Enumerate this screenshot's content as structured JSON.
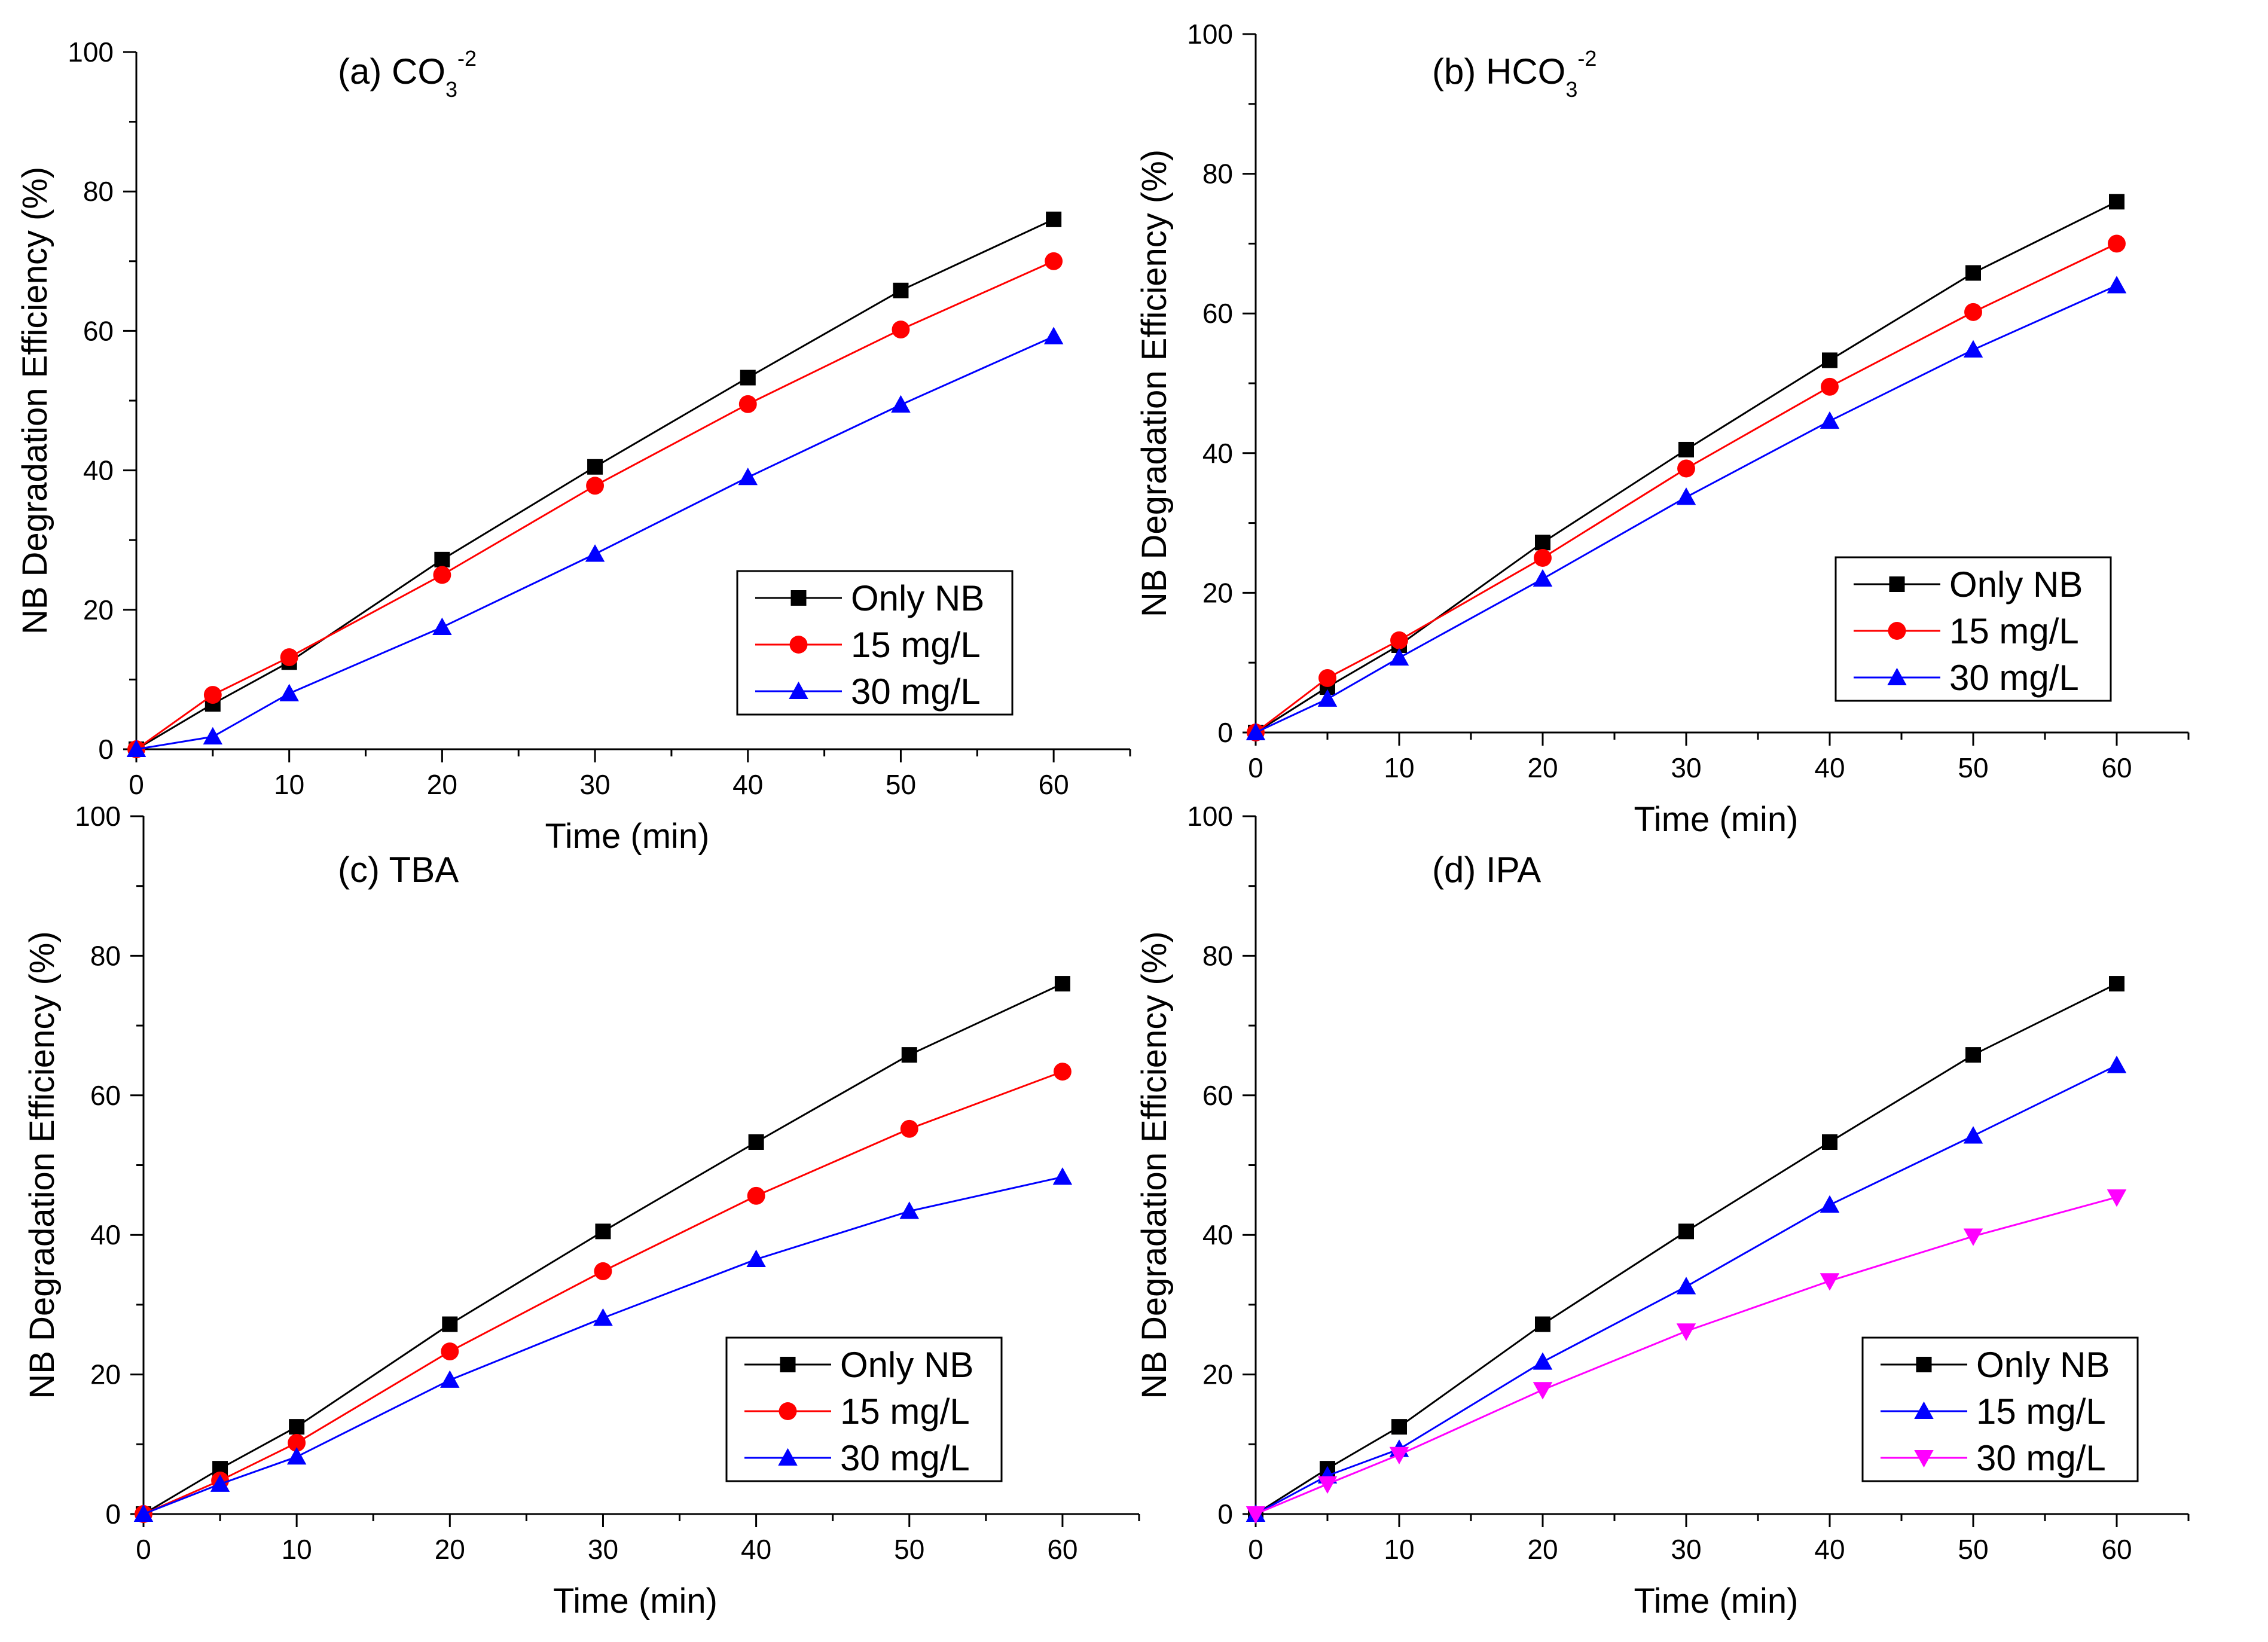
{
  "chart_data": [
    {
      "type": "line",
      "title_prefix": "(a)",
      "title_main": "CO",
      "title_sub": "3",
      "title_sup": "-2",
      "xlabel": "Time (min)",
      "ylabel": "NB Degradation Efficiency (%)",
      "xlim": [
        0,
        65
      ],
      "ylim": [
        0,
        100
      ],
      "xticks": [
        "0",
        "10",
        "20",
        "30",
        "40",
        "50",
        "60"
      ],
      "yticks": [
        "0",
        "20",
        "40",
        "60",
        "80",
        "100"
      ],
      "x": [
        0,
        5,
        10,
        20,
        30,
        40,
        50,
        60
      ],
      "legend_position": "bottom-right",
      "series": [
        {
          "name": "Only NB",
          "color": "#000000",
          "marker": "square",
          "values": [
            0,
            6.5,
            12.5,
            27.2,
            40.5,
            53.3,
            65.8,
            76.0
          ]
        },
        {
          "name": "15 mg/L",
          "color": "#ff0000",
          "marker": "circle",
          "values": [
            0,
            7.8,
            13.2,
            25.0,
            37.8,
            49.5,
            60.2,
            70.0
          ]
        },
        {
          "name": "30 mg/L",
          "color": "#0000ff",
          "marker": "triangle-up",
          "values": [
            0,
            1.8,
            8.0,
            17.5,
            28.0,
            39.0,
            49.4,
            59.2
          ]
        }
      ]
    },
    {
      "type": "line",
      "title_prefix": "(b)",
      "title_main": "HCO",
      "title_sub": "3",
      "title_sup": "-2",
      "xlabel": "Time (min)",
      "ylabel": "NB Degradation Efficiency (%)",
      "xlim": [
        0,
        65
      ],
      "ylim": [
        0,
        100
      ],
      "xticks": [
        "0",
        "10",
        "20",
        "30",
        "40",
        "50",
        "60"
      ],
      "yticks": [
        "0",
        "20",
        "40",
        "60",
        "80",
        "100"
      ],
      "x": [
        0,
        5,
        10,
        20,
        30,
        40,
        50,
        60
      ],
      "legend_position": "bottom-right",
      "series": [
        {
          "name": "Only NB",
          "color": "#000000",
          "marker": "square",
          "values": [
            0,
            6.5,
            12.5,
            27.2,
            40.5,
            53.3,
            65.8,
            76.0
          ]
        },
        {
          "name": "15 mg/L",
          "color": "#ff0000",
          "marker": "circle",
          "values": [
            0,
            7.8,
            13.2,
            25.0,
            37.8,
            49.5,
            60.2,
            70.0
          ]
        },
        {
          "name": "30 mg/L",
          "color": "#0000ff",
          "marker": "triangle-up",
          "values": [
            0,
            4.8,
            10.7,
            22.0,
            33.7,
            44.6,
            54.8,
            64.0
          ]
        }
      ]
    },
    {
      "type": "line",
      "title_prefix": "(c)",
      "title_main": "TBA",
      "title_sub": "",
      "title_sup": "",
      "xlabel": "Time (min)",
      "ylabel": "NB Degradation Efficiency (%)",
      "xlim": [
        0,
        65
      ],
      "ylim": [
        0,
        100
      ],
      "xticks": [
        "0",
        "10",
        "20",
        "30",
        "40",
        "50",
        "60"
      ],
      "yticks": [
        "0",
        "20",
        "40",
        "60",
        "80",
        "100"
      ],
      "x": [
        0,
        5,
        10,
        20,
        30,
        40,
        50,
        60
      ],
      "legend_position": "bottom-right",
      "series": [
        {
          "name": "Only NB",
          "color": "#000000",
          "marker": "square",
          "values": [
            0,
            6.5,
            12.5,
            27.2,
            40.5,
            53.3,
            65.8,
            76.0
          ]
        },
        {
          "name": "15 mg/L",
          "color": "#ff0000",
          "marker": "circle",
          "values": [
            0,
            4.8,
            10.2,
            23.3,
            34.8,
            45.6,
            55.2,
            63.4
          ]
        },
        {
          "name": "30 mg/L",
          "color": "#0000ff",
          "marker": "triangle-up",
          "values": [
            0,
            4.3,
            8.2,
            19.2,
            28.1,
            36.5,
            43.4,
            48.3
          ]
        }
      ]
    },
    {
      "type": "line",
      "title_prefix": "(d)",
      "title_main": "IPA",
      "title_sub": "",
      "title_sup": "",
      "xlabel": "Time (min)",
      "ylabel": "NB Degradation Efficiency (%)",
      "xlim": [
        0,
        65
      ],
      "ylim": [
        0,
        100
      ],
      "xticks": [
        "0",
        "10",
        "20",
        "30",
        "40",
        "50",
        "60"
      ],
      "yticks": [
        "0",
        "20",
        "40",
        "60",
        "80",
        "100"
      ],
      "x": [
        0,
        5,
        10,
        20,
        30,
        40,
        50,
        60
      ],
      "legend_position": "bottom-right",
      "series": [
        {
          "name": "Only NB",
          "color": "#000000",
          "marker": "square",
          "values": [
            0,
            6.5,
            12.5,
            27.2,
            40.5,
            53.3,
            65.8,
            76.0
          ]
        },
        {
          "name": "15 mg/L",
          "color": "#0000ff",
          "marker": "triangle-up",
          "values": [
            0,
            5.5,
            9.3,
            21.8,
            32.6,
            44.3,
            54.2,
            64.3
          ]
        },
        {
          "name": "30 mg/L",
          "color": "#ff00ff",
          "marker": "triangle-down",
          "values": [
            0,
            4.3,
            8.5,
            17.8,
            26.2,
            33.4,
            39.8,
            45.4
          ]
        }
      ]
    }
  ]
}
